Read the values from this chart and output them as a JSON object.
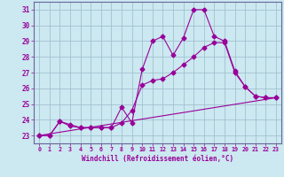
{
  "xlabel": "Windchill (Refroidissement éolien,°C)",
  "bg_color": "#cce8f0",
  "line_color": "#990099",
  "grid_color": "#99bbcc",
  "xlim": [
    -0.5,
    23.5
  ],
  "ylim": [
    22.5,
    31.5
  ],
  "yticks": [
    23,
    24,
    25,
    26,
    27,
    28,
    29,
    30,
    31
  ],
  "xticks": [
    0,
    1,
    2,
    3,
    4,
    5,
    6,
    7,
    8,
    9,
    10,
    11,
    12,
    13,
    14,
    15,
    16,
    17,
    18,
    19,
    20,
    21,
    22,
    23
  ],
  "line1_x": [
    0,
    1,
    2,
    3,
    4,
    5,
    6,
    7,
    8,
    9,
    10,
    11,
    12,
    13,
    14,
    15,
    16,
    17,
    18,
    19,
    20,
    21,
    22,
    23
  ],
  "line1_y": [
    23.0,
    23.0,
    23.9,
    23.7,
    23.5,
    23.5,
    23.5,
    23.5,
    24.8,
    23.8,
    27.2,
    29.0,
    29.3,
    28.1,
    29.2,
    31.0,
    31.0,
    29.3,
    29.0,
    27.1,
    26.1,
    25.5,
    25.4,
    25.4
  ],
  "line2_x": [
    0,
    1,
    2,
    3,
    4,
    5,
    6,
    7,
    8,
    9,
    10,
    11,
    12,
    13,
    14,
    15,
    16,
    17,
    18,
    19,
    20,
    21,
    22,
    23
  ],
  "line2_y": [
    23.0,
    23.0,
    23.9,
    23.6,
    23.5,
    23.5,
    23.5,
    23.5,
    23.8,
    24.6,
    26.2,
    26.5,
    26.6,
    27.0,
    27.5,
    28.0,
    28.6,
    28.9,
    28.9,
    27.0,
    26.1,
    25.5,
    25.4,
    25.4
  ],
  "line3_x": [
    0,
    23
  ],
  "line3_y": [
    23.0,
    25.4
  ],
  "marker": "D",
  "markersize": 2.5,
  "linewidth": 0.8
}
